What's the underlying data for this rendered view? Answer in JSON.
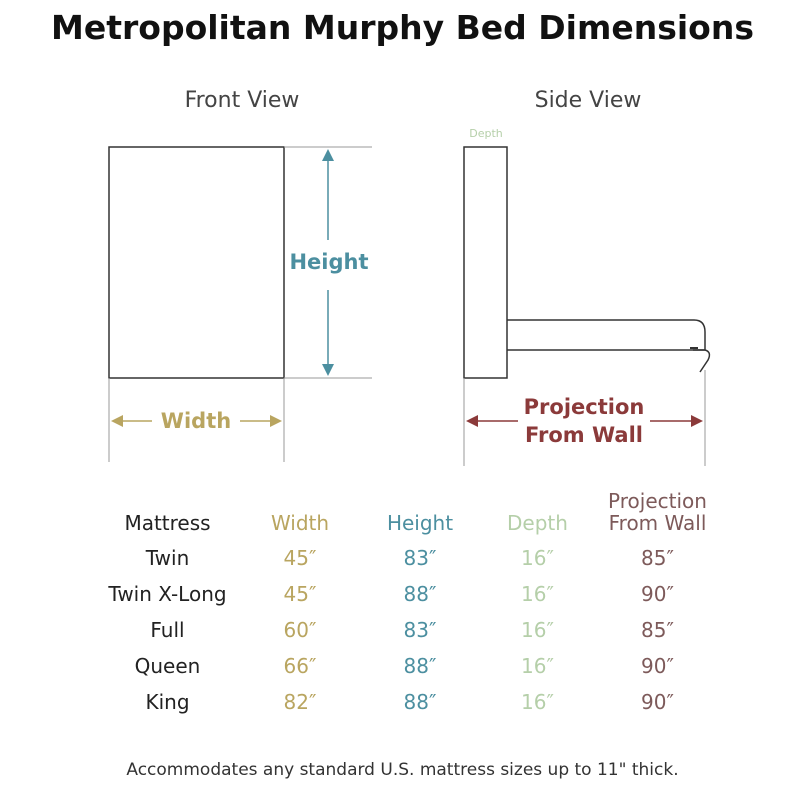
{
  "title": "Metropolitan Murphy Bed Dimensions",
  "views": {
    "front": "Front View",
    "side": "Side View"
  },
  "diagram_labels": {
    "height": "Height",
    "width": "Width",
    "depth": "Depth",
    "projection_line1": "Projection",
    "projection_line2": "From Wall"
  },
  "colors": {
    "width": "#b9a560",
    "height": "#4c8fa0",
    "depth": "#b5cfa9",
    "projection": "#8b3a3a",
    "outline": "#333333"
  },
  "table": {
    "headers": {
      "mattress": "Mattress",
      "width": "Width",
      "height": "Height",
      "depth": "Depth",
      "projection_line1": "Projection",
      "projection_line2": "From Wall"
    },
    "rows": [
      {
        "mattress": "Twin",
        "width": "45″",
        "height": "83″",
        "depth": "16″",
        "projection": "85″"
      },
      {
        "mattress": "Twin X-Long",
        "width": "45″",
        "height": "88″",
        "depth": "16″",
        "projection": "90″"
      },
      {
        "mattress": "Full",
        "width": "60″",
        "height": "83″",
        "depth": "16″",
        "projection": "85″"
      },
      {
        "mattress": "Queen",
        "width": "66″",
        "height": "88″",
        "depth": "16″",
        "projection": "90″"
      },
      {
        "mattress": "King",
        "width": "82″",
        "height": "88″",
        "depth": "16″",
        "projection": "90″"
      }
    ]
  },
  "footnote": "Accommodates any standard U.S. mattress sizes up to 11\" thick."
}
